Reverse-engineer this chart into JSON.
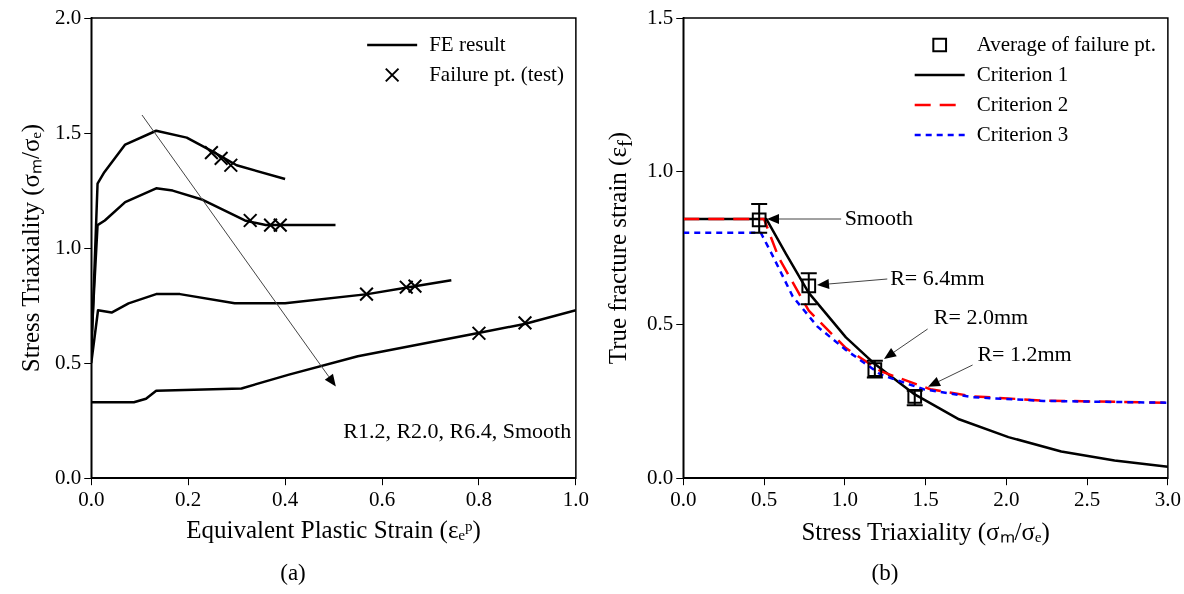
{
  "chart_data": [
    {
      "type": "line",
      "title": "(a)",
      "xlabel": "Equivalent Plastic Strain (εₑᵖ)",
      "ylabel": "Stress Triaxiality (σₘ/σₑ)",
      "xlim": [
        0,
        1
      ],
      "ylim": [
        0,
        2
      ],
      "xticks": [
        {
          "value": 0,
          "label": "0.0"
        },
        {
          "value": 0.2,
          "label": "0.2"
        },
        {
          "value": 0.4,
          "label": "0.4"
        },
        {
          "value": 0.6,
          "label": "0.6"
        },
        {
          "value": 0.8,
          "label": "0.8"
        },
        {
          "value": 1,
          "label": "1.0"
        }
      ],
      "yticks": [
        {
          "value": 0,
          "label": "0.0"
        },
        {
          "value": 0.5,
          "label": "0.5"
        },
        {
          "value": 1,
          "label": "1.0"
        },
        {
          "value": 1.5,
          "label": "1.5"
        },
        {
          "value": 2,
          "label": "2.0"
        }
      ],
      "grid": false,
      "legend": "top right",
      "marker": "none",
      "line_style": "solid",
      "annotations": [
        "R1.2, R2.0, R6.4, Smooth"
      ],
      "series": [
        {
          "name": "FE result",
          "color": "#000000",
          "x": [
            0,
            0.013,
            0.027,
            0.07,
            0.134,
            0.197,
            0.25,
            0.3,
            0.4
          ],
          "values": [
            0.52,
            1.28,
            1.33,
            1.45,
            1.51,
            1.48,
            1.42,
            1.36,
            1.3
          ]
        },
        {
          "color": "#000000",
          "x": [
            0,
            0.013,
            0.028,
            0.07,
            0.134,
            0.168,
            0.23,
            0.317,
            0.36,
            0.504
          ],
          "values": [
            0.59,
            1.1,
            1.12,
            1.2,
            1.26,
            1.25,
            1.21,
            1.12,
            1.1,
            1.1
          ]
        },
        {
          "color": "#000000",
          "x": [
            0,
            0.014,
            0.042,
            0.077,
            0.134,
            0.183,
            0.296,
            0.4,
            0.57,
            0.655,
            0.743
          ],
          "values": [
            0.5,
            0.73,
            0.72,
            0.76,
            0.8,
            0.8,
            0.76,
            0.76,
            0.8,
            0.83,
            0.86
          ]
        },
        {
          "color": "#000000",
          "x": [
            0,
            0.088,
            0.113,
            0.134,
            0.31,
            0.408,
            0.55,
            0.796,
            0.894,
            1.0
          ],
          "values": [
            0.33,
            0.33,
            0.345,
            0.38,
            0.39,
            0.45,
            0.53,
            0.63,
            0.67,
            0.73
          ]
        },
        {
          "type": "scatter",
          "name": "Failure pt. (test)",
          "color": "#000000",
          "marker": "cross",
          "x": [
            0.248,
            0.268,
            0.288,
            0.328,
            0.37,
            0.39,
            0.568,
            0.65,
            0.668,
            0.8,
            0.895
          ],
          "values": [
            1.415,
            1.39,
            1.36,
            1.12,
            1.1,
            1.1,
            0.8,
            0.83,
            0.835,
            0.63,
            0.675
          ]
        }
      ]
    },
    {
      "type": "line",
      "title": "(b)",
      "xlabel": "Stress Triaxiality (σₘ/σₑ)",
      "ylabel": "True fracture strain (ε$_{f}$)",
      "xlim": [
        0,
        3
      ],
      "ylim": [
        0,
        1.5
      ],
      "xticks": [
        {
          "value": 0,
          "label": "0.0"
        },
        {
          "value": 0.5,
          "label": "0.5"
        },
        {
          "value": 1,
          "label": "1.0"
        },
        {
          "value": 1.5,
          "label": "1.5"
        },
        {
          "value": 2,
          "label": "2.0"
        },
        {
          "value": 2.5,
          "label": "2.5"
        },
        {
          "value": 3,
          "label": "3.0"
        }
      ],
      "yticks": [
        {
          "value": 0,
          "label": "0.0"
        },
        {
          "value": 0.5,
          "label": "0.5"
        },
        {
          "value": 1,
          "label": "1.0"
        },
        {
          "value": 1.5,
          "label": "1.5"
        }
      ],
      "grid": false,
      "legend": "top right",
      "marker": "none",
      "annotations": [
        "Smooth",
        "R= 6.4mm",
        "R= 2.0mm",
        "R= 1.2mm"
      ],
      "series": [
        {
          "type": "scatter",
          "name": "Average of failure pt.",
          "color": "#000000",
          "marker": "square",
          "x": [
            0.47,
            0.777,
            1.186,
            1.433
          ],
          "values": [
            0.842,
            0.627,
            0.354,
            0.267
          ],
          "errors": [
            [
              0.8,
              0.894
            ],
            [
              0.567,
              0.668
            ],
            [
              0.328,
              0.383
            ],
            [
              0.238,
              0.285
            ]
          ]
        },
        {
          "name": "Criterion 1",
          "color": "#000000",
          "line_style": "solid",
          "x": [
            0,
            0.514,
            0.635,
            0.777,
            1.007,
            1.186,
            1.433,
            1.707,
            2.013,
            2.34,
            2.67,
            3.0
          ],
          "values": [
            0.845,
            0.845,
            0.732,
            0.604,
            0.459,
            0.372,
            0.273,
            0.192,
            0.134,
            0.087,
            0.058,
            0.037
          ]
        },
        {
          "name": "Criterion 2",
          "color": "#ff0000",
          "line_style": "dashed",
          "x": [
            0,
            0.5,
            0.59,
            0.777,
            1.007,
            1.225,
            1.53,
            1.79,
            2.23,
            3.0
          ],
          "values": [
            0.845,
            0.845,
            0.72,
            0.546,
            0.424,
            0.348,
            0.29,
            0.267,
            0.253,
            0.246
          ]
        },
        {
          "name": "Criterion 3",
          "color": "#0000ff",
          "line_style": "dotted",
          "x": [
            0,
            0.48,
            0.547,
            0.678,
            0.831,
            1.007,
            1.225,
            1.488,
            1.79,
            2.23,
            3.0
          ],
          "values": [
            0.8,
            0.8,
            0.732,
            0.592,
            0.494,
            0.418,
            0.337,
            0.29,
            0.264,
            0.252,
            0.246
          ]
        }
      ]
    }
  ]
}
